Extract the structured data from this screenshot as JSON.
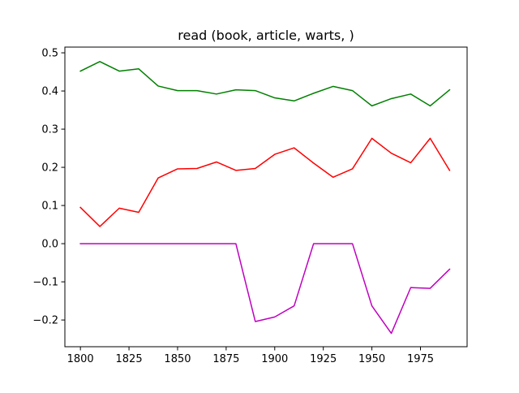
{
  "chart_data": {
    "type": "line",
    "title": "read (book, article, warts, )",
    "xlabel": "",
    "ylabel": "",
    "x": [
      1800,
      1810,
      1820,
      1830,
      1840,
      1850,
      1860,
      1870,
      1880,
      1890,
      1900,
      1910,
      1920,
      1930,
      1940,
      1950,
      1960,
      1970,
      1980,
      1990
    ],
    "xlim": [
      1792,
      1999
    ],
    "ylim": [
      -0.27,
      0.515
    ],
    "xticks": [
      1800,
      1825,
      1850,
      1875,
      1900,
      1925,
      1950,
      1975
    ],
    "xtick_labels": [
      "1800",
      "1825",
      "1850",
      "1875",
      "1900",
      "1925",
      "1950",
      "1975"
    ],
    "yticks": [
      -0.2,
      -0.1,
      0.0,
      0.1,
      0.2,
      0.3,
      0.4,
      0.5
    ],
    "ytick_labels": [
      "−0.2",
      "−0.1",
      "0.0",
      "0.1",
      "0.2",
      "0.3",
      "0.4",
      "0.5"
    ],
    "grid": false,
    "legend": "none",
    "series": [
      {
        "color": "#008000",
        "values": [
          0.452,
          0.477,
          0.452,
          0.458,
          0.413,
          0.401,
          0.401,
          0.392,
          0.403,
          0.401,
          0.382,
          0.374,
          0.394,
          0.412,
          0.401,
          0.361,
          0.38,
          0.392,
          0.361,
          0.403
        ]
      },
      {
        "color": "#ff0000",
        "values": [
          0.095,
          0.045,
          0.093,
          0.082,
          0.172,
          0.196,
          0.197,
          0.214,
          0.192,
          0.197,
          0.234,
          0.251,
          0.211,
          0.174,
          0.196,
          0.276,
          0.237,
          0.212,
          0.276,
          0.192
        ]
      },
      {
        "color": "#bf00bf",
        "values": [
          0.0,
          0.0,
          0.0,
          0.0,
          0.0,
          0.0,
          0.0,
          0.0,
          0.0,
          -0.204,
          -0.192,
          -0.163,
          0.0,
          0.0,
          0.0,
          -0.163,
          -0.235,
          -0.115,
          -0.117,
          -0.067
        ]
      }
    ]
  }
}
